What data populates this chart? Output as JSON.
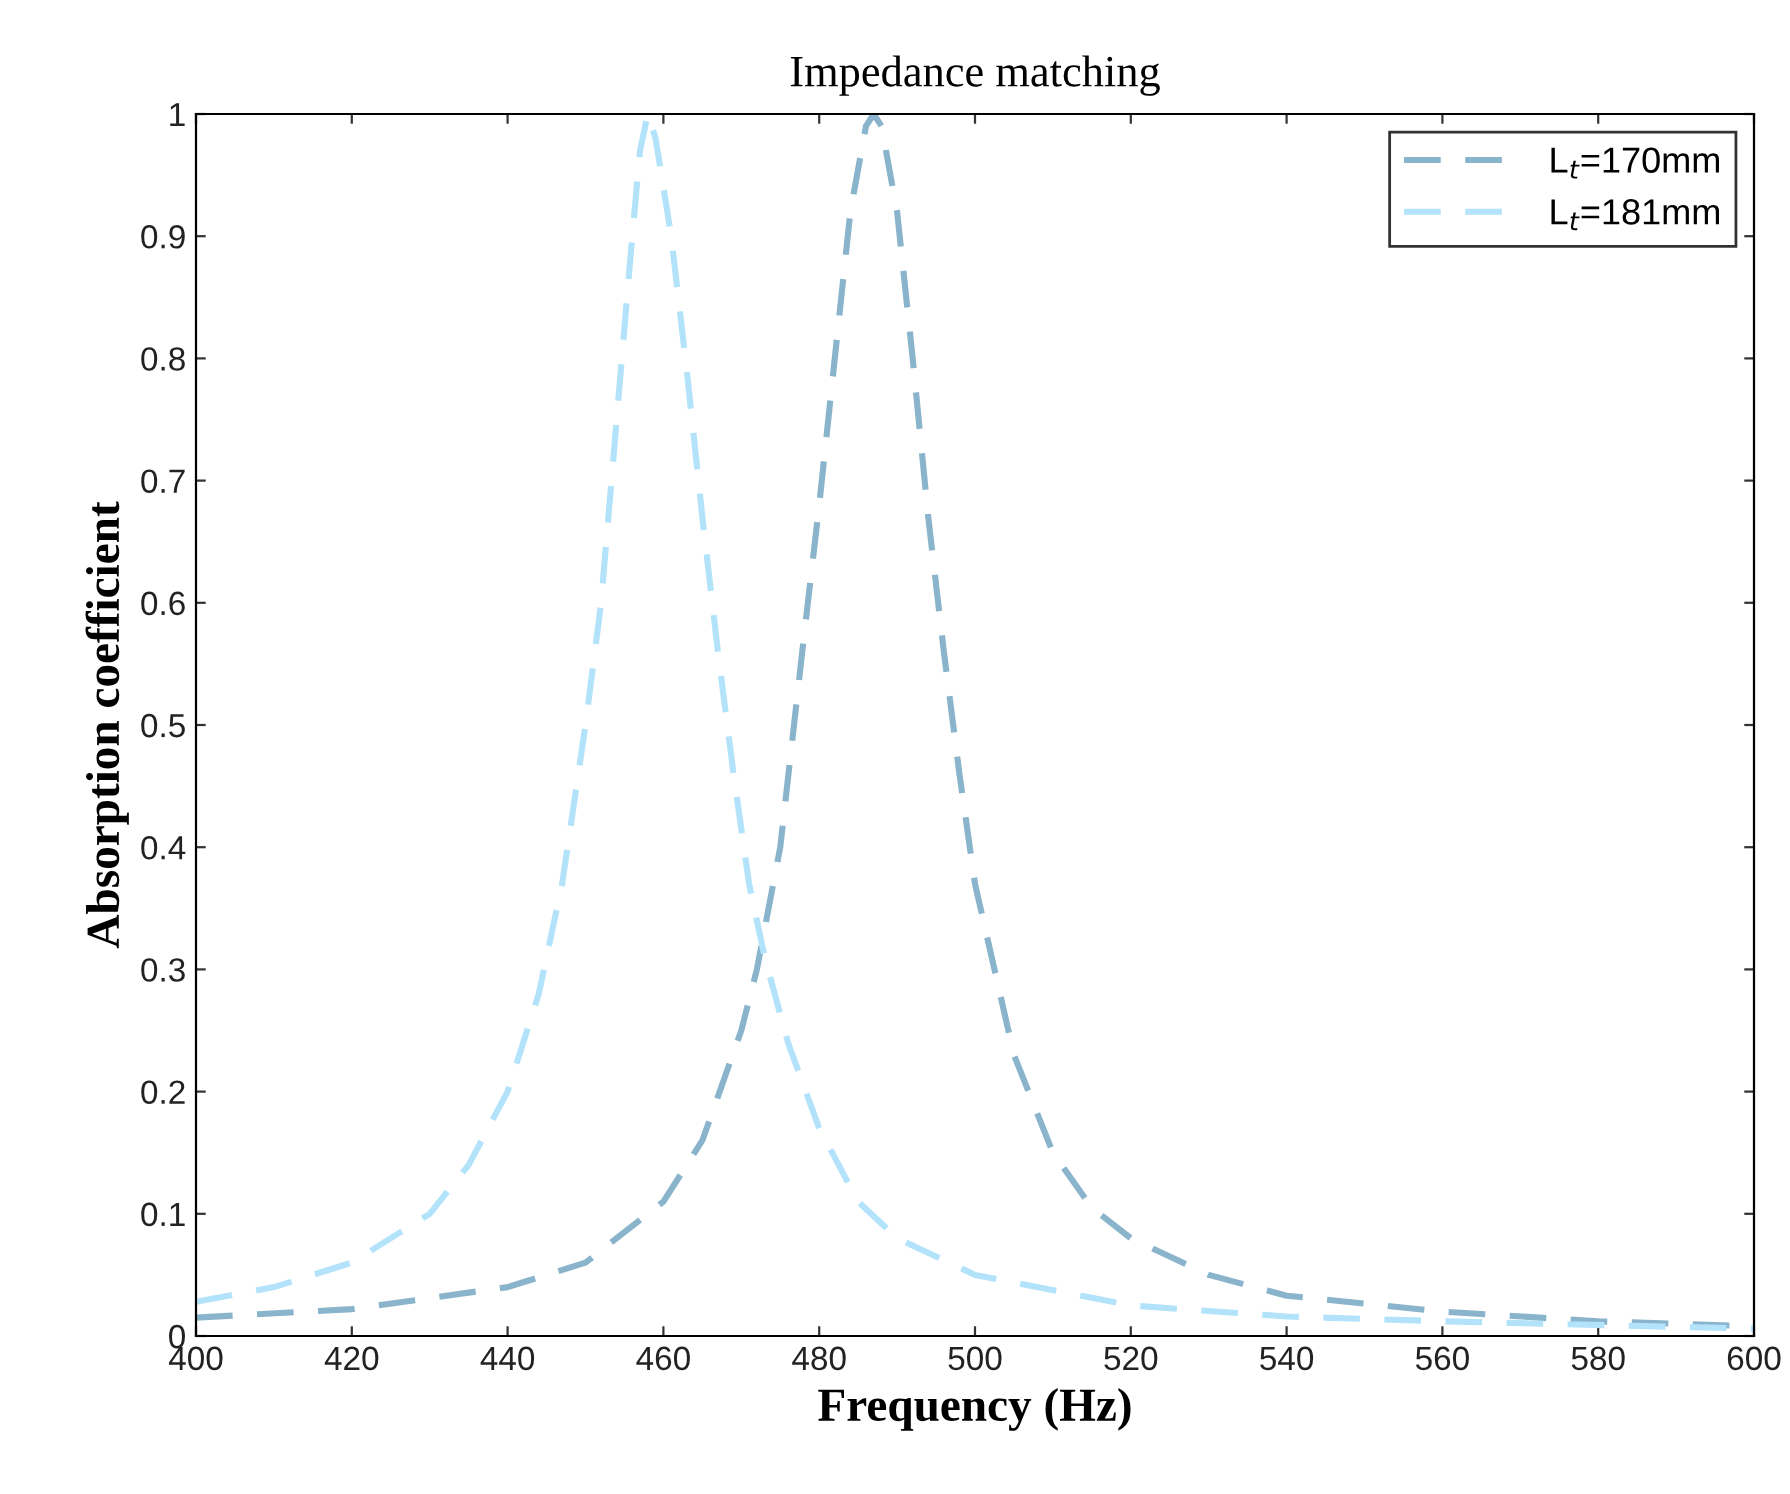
{
  "chart_data": {
    "type": "line",
    "title": "Impedance matching",
    "xlabel": "Frequency (Hz)",
    "ylabel": "Absorption coefficient",
    "xlim": [
      400,
      600
    ],
    "xticks": [
      400,
      420,
      440,
      460,
      480,
      500,
      520,
      540,
      560,
      580,
      600
    ],
    "ylim": [
      0,
      1
    ],
    "yticks": [
      0,
      0.1,
      0.2,
      0.3,
      0.4,
      0.5,
      0.6,
      0.7,
      0.8,
      0.9,
      1
    ],
    "grid": false,
    "legend": "top right",
    "line_style": "dashed",
    "marker": "none",
    "series": [
      {
        "name": "L$_{t}$=170mm",
        "color": "#8ab4cc",
        "x": [
          400,
          420,
          440,
          450,
          460,
          465,
          470,
          472,
          475,
          478,
          480,
          482,
          484,
          486,
          487,
          488,
          490,
          492,
          494,
          496,
          498,
          500,
          505,
          510,
          515,
          520,
          530,
          540,
          560,
          580,
          600
        ],
        "values": [
          0.015,
          0.022,
          0.04,
          0.06,
          0.11,
          0.16,
          0.25,
          0.3,
          0.4,
          0.57,
          0.68,
          0.8,
          0.92,
          0.99,
          1.0,
          0.99,
          0.92,
          0.8,
          0.67,
          0.56,
          0.46,
          0.37,
          0.23,
          0.15,
          0.105,
          0.08,
          0.05,
          0.033,
          0.02,
          0.012,
          0.008
        ]
      },
      {
        "name": "L$_{t}$=181mm",
        "color": "#b3e3fb",
        "x": [
          400,
          410,
          420,
          430,
          435,
          440,
          444,
          447,
          450,
          452,
          454,
          456,
          457,
          458,
          459,
          461,
          463,
          465,
          467,
          469,
          471,
          473,
          476,
          480,
          485,
          490,
          500,
          520,
          540,
          560,
          600
        ],
        "values": [
          0.028,
          0.04,
          0.06,
          0.1,
          0.14,
          0.2,
          0.28,
          0.37,
          0.5,
          0.6,
          0.75,
          0.9,
          0.97,
          1.0,
          0.98,
          0.9,
          0.79,
          0.67,
          0.56,
          0.46,
          0.37,
          0.31,
          0.24,
          0.17,
          0.11,
          0.08,
          0.05,
          0.025,
          0.016,
          0.012,
          0.006
        ]
      }
    ]
  }
}
